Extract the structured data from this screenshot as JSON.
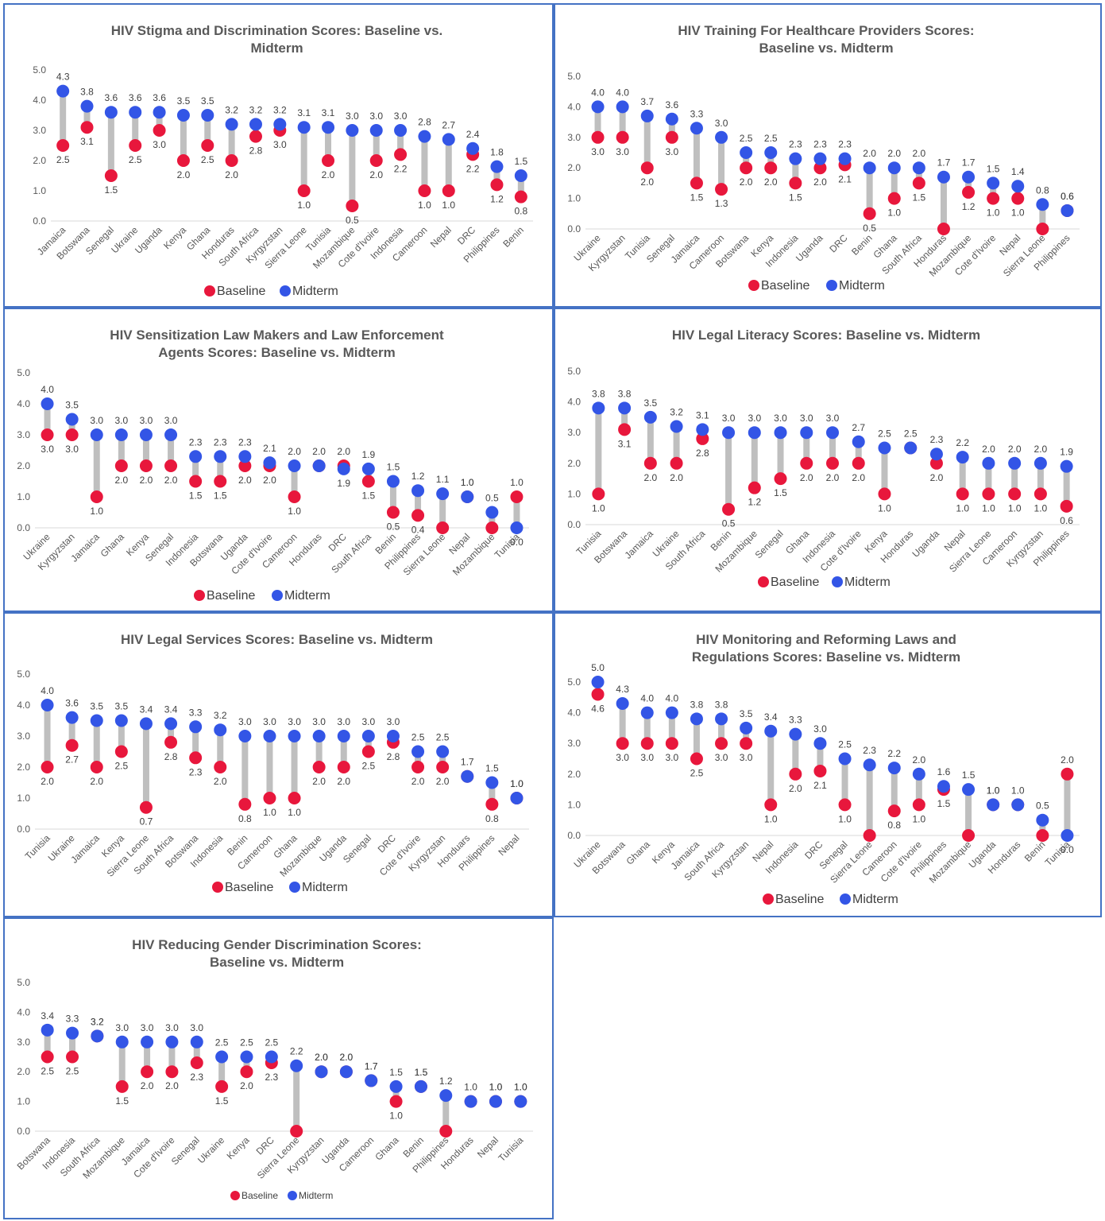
{
  "colors": {
    "baseline": "#E8173C",
    "midterm": "#3355E6",
    "connector": "#BFBFBF",
    "axis": "#D9D9D9",
    "border": "#4472C4"
  },
  "chart_data": [
    {
      "type": "scatter",
      "title": [
        "HIV Stigma and Discrimination Scores: Baseline vs.",
        "Midterm"
      ],
      "yticks": [
        "0.0",
        "1.0",
        "2.0",
        "3.0",
        "4.0",
        "5.0"
      ],
      "ylim": [
        0,
        5
      ],
      "legend": [
        "Baseline",
        "Midterm"
      ],
      "categories": [
        "Jamaica",
        "Botswana",
        "Senegal",
        "Ukraine",
        "Uganda",
        "Kenya",
        "Ghana",
        "Honduras",
        "South Africa",
        "Kyrgyzstan",
        "Sierra Leone",
        "Tunisia",
        "Mozambique",
        "Cote d'Ivoire",
        "Indonesia",
        "Cameroon",
        "Nepal",
        "DRC",
        "Philippines",
        "Benin"
      ],
      "baseline": [
        2.5,
        3.1,
        1.5,
        2.5,
        3.0,
        2.0,
        2.5,
        2.0,
        2.8,
        3.0,
        1.0,
        2.0,
        0.5,
        2.0,
        2.2,
        1.0,
        1.0,
        2.2,
        1.2,
        0.8
      ],
      "midterm": [
        4.3,
        3.8,
        3.6,
        3.6,
        3.6,
        3.5,
        3.5,
        3.2,
        3.2,
        3.2,
        3.1,
        3.1,
        3.0,
        3.0,
        3.0,
        2.8,
        2.7,
        2.4,
        1.8,
        1.5
      ],
      "baseline_labels": [
        "2.5",
        "3.1",
        "1.5",
        "2.5",
        "3.0",
        "2.0",
        "2.5",
        "2.0",
        "2.8",
        "3.0",
        "1.0",
        "2.0",
        "0.5",
        "2.0",
        "2.2",
        "1.0",
        "1.0",
        "2.2",
        "1.2",
        "0.8"
      ],
      "midterm_labels": [
        "4.3",
        "3.8",
        "3.6",
        "3.6",
        "3.6",
        "3.5",
        "3.5",
        "3.2",
        "3.2",
        "3.2",
        "3.1",
        "3.1",
        "3.0",
        "3.0",
        "3.0",
        "2.8",
        "2.7",
        "2.4",
        "1.8",
        "1.5"
      ]
    },
    {
      "type": "scatter",
      "title": [
        "HIV Training For Healthcare Providers Scores:",
        "Baseline vs. Midterm"
      ],
      "yticks": [
        "0.0",
        "1.0",
        "2.0",
        "3.0",
        "4.0",
        "5.0"
      ],
      "ylim": [
        0,
        5
      ],
      "legend": [
        "Baseline",
        "Midterm"
      ],
      "categories": [
        "Ukraine",
        "Kyrgyzstan",
        "Tunisia",
        "Senegal",
        "Jamaica",
        "Cameroon",
        "Botswana",
        "Kenya",
        "Indonesia",
        "Uganda",
        "DRC",
        "Benin",
        "Ghana",
        "South Africa",
        "Honduras",
        "Mozambique",
        "Cote d'Ivoire",
        "Nepal",
        "Sierra Leone",
        "Philippines"
      ],
      "baseline": [
        3.0,
        3.0,
        2.0,
        3.0,
        1.5,
        1.3,
        2.0,
        2.0,
        1.5,
        2.0,
        2.1,
        0.5,
        1.0,
        1.5,
        0.0,
        1.2,
        1.0,
        1.0,
        0.0,
        0.6
      ],
      "midterm": [
        4.0,
        4.0,
        3.7,
        3.6,
        3.3,
        3.0,
        2.5,
        2.5,
        2.3,
        2.3,
        2.3,
        2.0,
        2.0,
        2.0,
        1.7,
        1.7,
        1.5,
        1.4,
        0.8,
        0.6
      ],
      "baseline_labels": [
        "3.0",
        "3.0",
        "2.0",
        "3.0",
        "1.5",
        "1.3",
        "2.0",
        "2.0",
        "1.5",
        "2.0",
        "2.1",
        "0.5",
        "1.0",
        "1.5",
        "",
        "1.2",
        "1.0",
        "1.0",
        "",
        "0.6"
      ],
      "midterm_labels": [
        "4.0",
        "4.0",
        "3.7",
        "3.6",
        "3.3",
        "3.0",
        "2.5",
        "2.5",
        "2.3",
        "2.3",
        "2.3",
        "2.0",
        "2.0",
        "2.0",
        "1.7",
        "1.7",
        "1.5",
        "1.4",
        "0.8",
        "0.6"
      ]
    },
    {
      "type": "scatter",
      "title": [
        "HIV Sensitization Law Makers and Law Enforcement",
        "Agents Scores: Baseline vs. Midterm"
      ],
      "yticks": [
        "0.0",
        "1.0",
        "2.0",
        "3.0",
        "4.0",
        "5.0"
      ],
      "ylim": [
        0,
        5
      ],
      "legend": [
        "Baseline",
        "Midterm"
      ],
      "categories": [
        "Ukraine",
        "Kyrgyzstan",
        "Jamaica",
        "Ghana",
        "Kenya",
        "Senegal",
        "Indonesia",
        "Botswana",
        "Uganda",
        "Cote d'Ivoire",
        "Cameroon",
        "Honduras",
        "DRC",
        "South Africa",
        "Benin",
        "Philippines",
        "Sierra Leone",
        "Nepal",
        "Mozambique",
        "Tunisia"
      ],
      "baseline": [
        3.0,
        3.0,
        1.0,
        2.0,
        2.0,
        2.0,
        1.5,
        1.5,
        2.0,
        2.0,
        1.0,
        2.0,
        2.0,
        1.5,
        0.5,
        0.4,
        0.0,
        1.0,
        0.0,
        1.0
      ],
      "midterm": [
        4.0,
        3.5,
        3.0,
        3.0,
        3.0,
        3.0,
        2.3,
        2.3,
        2.3,
        2.1,
        2.0,
        2.0,
        1.9,
        1.9,
        1.5,
        1.2,
        1.1,
        1.0,
        0.5,
        0.0
      ],
      "baseline_labels": [
        "3.0",
        "3.0",
        "1.0",
        "2.0",
        "2.0",
        "2.0",
        "1.5",
        "1.5",
        "2.0",
        "2.0",
        "1.0",
        "",
        "2.0",
        "1.5",
        "0.5",
        "0.4",
        "",
        "1.0",
        "",
        "1.0"
      ],
      "midterm_labels": [
        "4.0",
        "3.5",
        "3.0",
        "3.0",
        "3.0",
        "3.0",
        "2.3",
        "2.3",
        "2.3",
        "2.1",
        "2.0",
        "2.0",
        "1.9",
        "1.9",
        "1.5",
        "1.2",
        "1.1",
        "1.0",
        "0.5",
        "0.0"
      ]
    },
    {
      "type": "scatter",
      "title": [
        "HIV Legal Literacy Scores: Baseline vs. Midterm"
      ],
      "yticks": [
        "0.0",
        "1.0",
        "2.0",
        "3.0",
        "4.0",
        "5.0"
      ],
      "ylim": [
        0,
        5
      ],
      "legend": [
        "Baseline",
        "Midterm"
      ],
      "categories": [
        "Tunisia",
        "Botswana",
        "Jamaica",
        "Ukraine",
        "South Africa",
        "Benin",
        "Mozambique",
        "Senegal",
        "Ghana",
        "Indonesia",
        "Cote d'Ivoire",
        "Kenya",
        "Honduras",
        "Uganda",
        "Nepal",
        "Sierra Leone",
        "Cameroon",
        "Kyrgyzstan",
        "Philippines"
      ],
      "baseline": [
        1.0,
        3.1,
        2.0,
        2.0,
        2.8,
        0.5,
        1.2,
        1.5,
        2.0,
        2.0,
        2.0,
        1.0,
        2.5,
        2.0,
        1.0,
        1.0,
        1.0,
        1.0,
        0.6
      ],
      "midterm": [
        3.8,
        3.8,
        3.5,
        3.2,
        3.1,
        3.0,
        3.0,
        3.0,
        3.0,
        3.0,
        2.7,
        2.5,
        2.5,
        2.3,
        2.2,
        2.0,
        2.0,
        2.0,
        1.9
      ],
      "baseline_labels": [
        "1.0",
        "3.1",
        "2.0",
        "2.0",
        "2.8",
        "0.5",
        "1.2",
        "1.5",
        "2.0",
        "2.0",
        "2.0",
        "1.0",
        "",
        "2.0",
        "1.0",
        "1.0",
        "1.0",
        "1.0",
        "0.6"
      ],
      "midterm_labels": [
        "3.8",
        "3.8",
        "3.5",
        "3.2",
        "3.1",
        "3.0",
        "3.0",
        "3.0",
        "3.0",
        "3.0",
        "2.7",
        "2.5",
        "2.5",
        "2.3",
        "2.2",
        "2.0",
        "2.0",
        "2.0",
        "1.9"
      ]
    },
    {
      "type": "scatter",
      "title": [
        "HIV Legal Services Scores: Baseline vs. Midterm"
      ],
      "yticks": [
        "0.0",
        "1.0",
        "2.0",
        "3.0",
        "4.0",
        "5.0"
      ],
      "ylim": [
        0,
        5
      ],
      "legend": [
        "Baseline",
        "Midterm"
      ],
      "categories": [
        "Tunisia",
        "Ukraine",
        "Jamaica",
        "Kenya",
        "Sierra Leone",
        "South Africa",
        "Botswana",
        "Indonesia",
        "Benin",
        "Cameroon",
        "Ghana",
        "Mozambique",
        "Uganda",
        "Senegal",
        "DRC",
        "Cote d'Ivoire",
        "Kyrgyzstan",
        "Honduars",
        "Philippines",
        "Nepal"
      ],
      "baseline": [
        2.0,
        2.7,
        2.0,
        2.5,
        0.7,
        2.8,
        2.3,
        2.0,
        0.8,
        1.0,
        1.0,
        2.0,
        2.0,
        2.5,
        2.8,
        2.0,
        2.0,
        1.7,
        0.8,
        1.0
      ],
      "midterm": [
        4.0,
        3.6,
        3.5,
        3.5,
        3.4,
        3.4,
        3.3,
        3.2,
        3.0,
        3.0,
        3.0,
        3.0,
        3.0,
        3.0,
        3.0,
        2.5,
        2.5,
        1.7,
        1.5,
        1.0
      ],
      "baseline_labels": [
        "2.0",
        "2.7",
        "2.0",
        "2.5",
        "0.7",
        "2.8",
        "2.3",
        "2.0",
        "0.8",
        "1.0",
        "1.0",
        "2.0",
        "2.0",
        "2.5",
        "2.8",
        "2.0",
        "2.0",
        "",
        "0.8",
        "1.0"
      ],
      "midterm_labels": [
        "4.0",
        "3.6",
        "3.5",
        "3.5",
        "3.4",
        "3.4",
        "3.3",
        "3.2",
        "3.0",
        "3.0",
        "3.0",
        "3.0",
        "3.0",
        "3.0",
        "3.0",
        "2.5",
        "2.5",
        "1.7",
        "1.5",
        "1.0"
      ]
    },
    {
      "type": "scatter",
      "title": [
        "HIV Monitoring and Reforming Laws and",
        "Regulations Scores: Baseline vs. Midterm"
      ],
      "yticks": [
        "0.0",
        "1.0",
        "2.0",
        "3.0",
        "4.0",
        "5.0"
      ],
      "ylim": [
        0,
        5
      ],
      "legend": [
        "Baseline",
        "Midterm"
      ],
      "categories": [
        "Ukraine",
        "Botswana",
        "Ghana",
        "Kenya",
        "Jamaica",
        "South Africa",
        "Kyrgyzstan",
        "Nepal",
        "Indonesia",
        "DRC",
        "Senegal",
        "Sierra Leone",
        "Cameroon",
        "Cote d'Ivoire",
        "Philippines",
        "Mozambique",
        "Uganda",
        "Honduras",
        "Benin",
        "Tunisia"
      ],
      "baseline": [
        4.6,
        3.0,
        3.0,
        3.0,
        2.5,
        3.0,
        3.0,
        1.0,
        2.0,
        2.1,
        1.0,
        0.0,
        0.8,
        1.0,
        1.5,
        0.0,
        1.0,
        1.0,
        0.0,
        2.0
      ],
      "midterm": [
        5.0,
        4.3,
        4.0,
        4.0,
        3.8,
        3.8,
        3.5,
        3.4,
        3.3,
        3.0,
        2.5,
        2.3,
        2.2,
        2.0,
        1.6,
        1.5,
        1.0,
        1.0,
        0.5,
        0.0
      ],
      "baseline_labels": [
        "4.6",
        "3.0",
        "3.0",
        "3.0",
        "2.5",
        "3.0",
        "3.0",
        "1.0",
        "2.0",
        "2.1",
        "1.0",
        "",
        "0.8",
        "1.0",
        "1.5",
        "",
        "1.0",
        "",
        "",
        "2.0"
      ],
      "midterm_labels": [
        "5.0",
        "4.3",
        "4.0",
        "4.0",
        "3.8",
        "3.8",
        "3.5",
        "3.4",
        "3.3",
        "3.0",
        "2.5",
        "2.3",
        "2.2",
        "2.0",
        "1.6",
        "1.5",
        "1.0",
        "1.0",
        "0.5",
        "0.0"
      ]
    },
    {
      "type": "scatter",
      "title": [
        "HIV Reducing Gender Discrimination Scores:",
        "Baseline vs. Midterm"
      ],
      "yticks": [
        "0.0",
        "1.0",
        "2.0",
        "3.0",
        "4.0",
        "5.0"
      ],
      "ylim": [
        0,
        5
      ],
      "legend": [
        "Baseline",
        "Midterm"
      ],
      "categories": [
        "Botswana",
        "Indonesia",
        "South Africa",
        "Mozambique",
        "Jamaica",
        "Cote d'Ivoire",
        "Senegal",
        "Ukraine",
        "Kenya",
        "DRC",
        "Sierra Leone",
        "Kyrgyzstan",
        "Uganda",
        "Cameroon",
        "Ghana",
        "Benin",
        "Philippines",
        "Honduras",
        "Nepal",
        "Tunisia"
      ],
      "baseline": [
        2.5,
        2.5,
        3.2,
        1.5,
        2.0,
        2.0,
        2.3,
        1.5,
        2.0,
        2.3,
        0.0,
        2.0,
        2.0,
        1.7,
        1.0,
        1.5,
        0.0,
        1.0,
        1.0,
        1.0
      ],
      "midterm": [
        3.4,
        3.3,
        3.2,
        3.0,
        3.0,
        3.0,
        3.0,
        2.5,
        2.5,
        2.5,
        2.2,
        2.0,
        2.0,
        1.7,
        1.5,
        1.5,
        1.2,
        1.0,
        1.0,
        1.0
      ],
      "baseline_labels": [
        "2.5",
        "2.5",
        "3.2",
        "1.5",
        "2.0",
        "2.0",
        "2.3",
        "1.5",
        "2.0",
        "2.3",
        "",
        "2.0",
        "2.0",
        "1.7",
        "1.0",
        "1.5",
        "",
        "",
        "1.0",
        "1.0"
      ],
      "midterm_labels": [
        "3.4",
        "3.3",
        "3.2",
        "3.0",
        "3.0",
        "3.0",
        "3.0",
        "2.5",
        "2.5",
        "2.5",
        "2.2",
        "2.0",
        "2.0",
        "1.7",
        "1.5",
        "1.5",
        "1.2",
        "1.0",
        "1.0",
        "1.0"
      ]
    }
  ]
}
